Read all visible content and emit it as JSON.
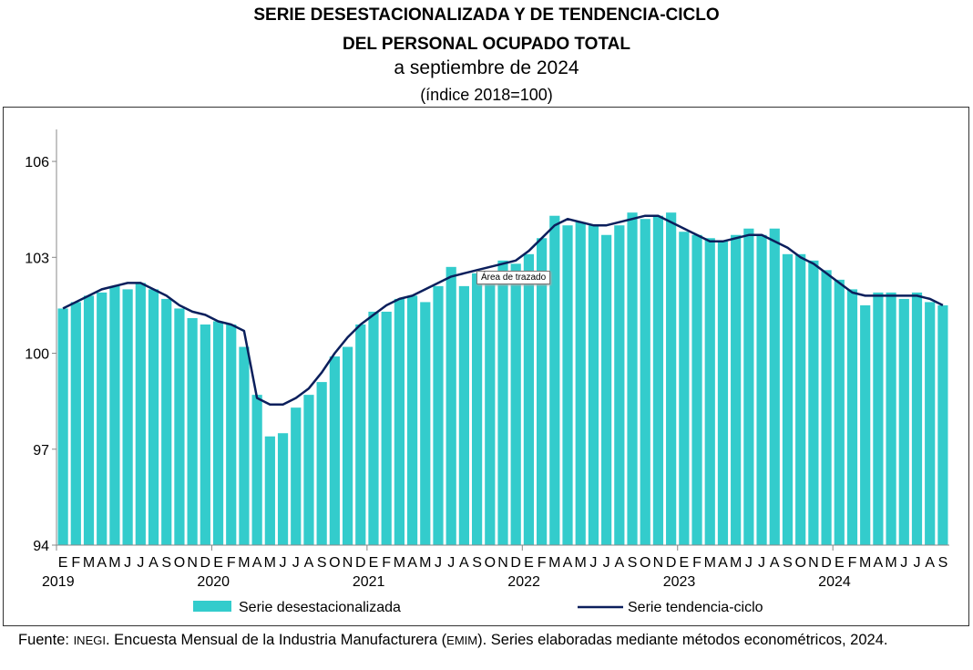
{
  "chart_data": {
    "type": "bar+line",
    "title": "SERIE DESESTACIONALIZADA Y DE TENDENCIA-CICLO",
    "title_line2": "DEL PERSONAL OCUPADO TOTAL",
    "subtitle": "a septiembre de 2024",
    "unit": "(índice 2018=100)",
    "ylim": [
      94,
      107
    ],
    "yticks": [
      94,
      97,
      100,
      103,
      106
    ],
    "month_labels": [
      "E",
      "F",
      "M",
      "A",
      "M",
      "J",
      "J",
      "A",
      "S",
      "O",
      "N",
      "D"
    ],
    "years": [
      "2019",
      "2020",
      "2021",
      "2022",
      "2023",
      "2024"
    ],
    "legend_position": "bottom",
    "grid": false,
    "colors": {
      "bars": "#33CCCC",
      "line": "#0B1F5C"
    },
    "series": [
      {
        "name": "Serie desestacionalizada",
        "type": "bar",
        "values": [
          101.4,
          101.6,
          101.8,
          101.9,
          102.1,
          102.0,
          102.2,
          102.0,
          101.7,
          101.4,
          101.1,
          100.9,
          101.0,
          100.9,
          100.2,
          98.7,
          97.4,
          97.5,
          98.3,
          98.7,
          99.1,
          99.9,
          100.2,
          100.9,
          101.3,
          101.3,
          101.7,
          101.8,
          101.6,
          102.1,
          102.7,
          102.1,
          102.5,
          102.4,
          102.9,
          102.8,
          103.1,
          103.6,
          104.3,
          104.0,
          104.1,
          104.0,
          103.7,
          104.0,
          104.4,
          104.2,
          104.3,
          104.4,
          103.8,
          103.7,
          103.6,
          103.5,
          103.7,
          103.9,
          103.7,
          103.9,
          103.1,
          103.1,
          102.9,
          102.6,
          102.3,
          102.0,
          101.5,
          101.9,
          101.9,
          101.7,
          101.9,
          101.6,
          101.5
        ]
      },
      {
        "name": "Serie tendencia-ciclo",
        "type": "line",
        "values": [
          101.4,
          101.6,
          101.8,
          102.0,
          102.1,
          102.2,
          102.2,
          102.0,
          101.8,
          101.5,
          101.3,
          101.2,
          101.0,
          100.9,
          100.7,
          98.6,
          98.4,
          98.4,
          98.6,
          98.9,
          99.4,
          100.0,
          100.5,
          100.9,
          101.2,
          101.5,
          101.7,
          101.8,
          102.0,
          102.2,
          102.4,
          102.5,
          102.6,
          102.7,
          102.8,
          102.9,
          103.2,
          103.6,
          104.0,
          104.2,
          104.1,
          104.0,
          104.0,
          104.1,
          104.2,
          104.3,
          104.3,
          104.1,
          103.9,
          103.7,
          103.5,
          103.5,
          103.6,
          103.7,
          103.7,
          103.5,
          103.3,
          103.0,
          102.8,
          102.5,
          102.2,
          101.9,
          101.8,
          101.8,
          101.8,
          101.8,
          101.8,
          101.7,
          101.5
        ]
      }
    ]
  },
  "tooltip": "Área de trazado",
  "footer": {
    "label": "Fuente:",
    "org": "INEGI",
    "text1": ". Encuesta Mensual de la Industria Manufacturera (",
    "abbr": "EMIM",
    "text2": "). Series elaboradas mediante métodos econométricos, 2024."
  }
}
